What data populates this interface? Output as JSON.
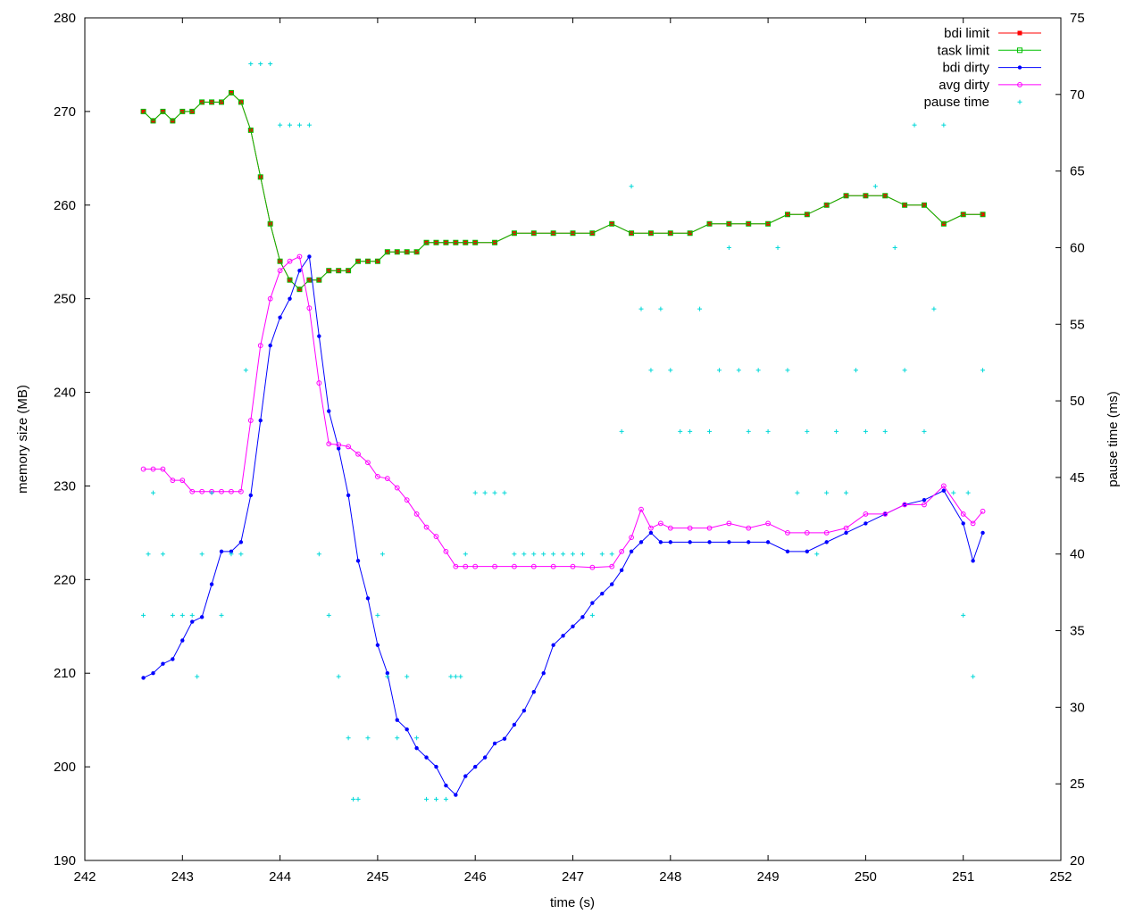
{
  "chart_data": {
    "type": "line",
    "x_label": "time (s)",
    "y_label": "memory size (MB)",
    "y2_label": "pause time (ms)",
    "xlim": [
      242,
      252
    ],
    "ylim": [
      190,
      280
    ],
    "y2lim": [
      20,
      75
    ],
    "x_ticks": [
      242,
      243,
      244,
      245,
      246,
      247,
      248,
      249,
      250,
      251,
      252
    ],
    "y_ticks": [
      190,
      200,
      210,
      220,
      230,
      240,
      250,
      260,
      270,
      280
    ],
    "y2_ticks": [
      20,
      25,
      30,
      35,
      40,
      45,
      50,
      55,
      60,
      65,
      70,
      75
    ],
    "legend_position": "top-right",
    "series": [
      {
        "name": "bdi limit",
        "axis": "y1",
        "color": "#ff0000",
        "marker": "square",
        "x": [
          242.6,
          242.7,
          242.8,
          242.9,
          243.0,
          243.1,
          243.2,
          243.3,
          243.4,
          243.5,
          243.6,
          243.7,
          243.8,
          243.9,
          244.0,
          244.1,
          244.2,
          244.3,
          244.4,
          244.5,
          244.6,
          244.7,
          244.8,
          244.9,
          245.0,
          245.1,
          245.2,
          245.3,
          245.4,
          245.5,
          245.6,
          245.7,
          245.8,
          245.9,
          246.0,
          246.2,
          246.4,
          246.6,
          246.8,
          247.0,
          247.2,
          247.4,
          247.6,
          247.8,
          248.0,
          248.2,
          248.4,
          248.6,
          248.8,
          249.0,
          249.2,
          249.4,
          249.6,
          249.8,
          250.0,
          250.2,
          250.4,
          250.6,
          250.8,
          251.0,
          251.2
        ],
        "values": [
          270,
          269,
          270,
          269,
          270,
          270,
          271,
          271,
          271,
          272,
          271,
          268,
          263,
          258,
          254,
          252,
          251,
          252,
          252,
          253,
          253,
          253,
          254,
          254,
          254,
          255,
          255,
          255,
          255,
          256,
          256,
          256,
          256,
          256,
          256,
          256,
          257,
          257,
          257,
          257,
          257,
          258,
          257,
          257,
          257,
          257,
          258,
          258,
          258,
          258,
          259,
          259,
          260,
          261,
          261,
          261,
          260,
          260,
          258,
          259,
          259
        ]
      },
      {
        "name": "task limit",
        "axis": "y1",
        "color": "#00c000",
        "marker": "open-square",
        "x": [
          242.6,
          242.7,
          242.8,
          242.9,
          243.0,
          243.1,
          243.2,
          243.3,
          243.4,
          243.5,
          243.6,
          243.7,
          243.8,
          243.9,
          244.0,
          244.1,
          244.2,
          244.3,
          244.4,
          244.5,
          244.6,
          244.7,
          244.8,
          244.9,
          245.0,
          245.1,
          245.2,
          245.3,
          245.4,
          245.5,
          245.6,
          245.7,
          245.8,
          245.9,
          246.0,
          246.2,
          246.4,
          246.6,
          246.8,
          247.0,
          247.2,
          247.4,
          247.6,
          247.8,
          248.0,
          248.2,
          248.4,
          248.6,
          248.8,
          249.0,
          249.2,
          249.4,
          249.6,
          249.8,
          250.0,
          250.2,
          250.4,
          250.6,
          250.8,
          251.0,
          251.2
        ],
        "values": [
          270,
          269,
          270,
          269,
          270,
          270,
          271,
          271,
          271,
          272,
          271,
          268,
          263,
          258,
          254,
          252,
          251,
          252,
          252,
          253,
          253,
          253,
          254,
          254,
          254,
          255,
          255,
          255,
          255,
          256,
          256,
          256,
          256,
          256,
          256,
          256,
          257,
          257,
          257,
          257,
          257,
          258,
          257,
          257,
          257,
          257,
          258,
          258,
          258,
          258,
          259,
          259,
          260,
          261,
          261,
          261,
          260,
          260,
          258,
          259,
          259
        ]
      },
      {
        "name": "bdi dirty",
        "axis": "y1",
        "color": "#0000ff",
        "marker": "dot",
        "x": [
          242.6,
          242.7,
          242.8,
          242.9,
          243.0,
          243.1,
          243.2,
          243.3,
          243.4,
          243.5,
          243.6,
          243.7,
          243.8,
          243.9,
          244.0,
          244.1,
          244.2,
          244.3,
          244.4,
          244.5,
          244.6,
          244.7,
          244.8,
          244.9,
          245.0,
          245.1,
          245.2,
          245.3,
          245.4,
          245.5,
          245.6,
          245.7,
          245.8,
          245.9,
          246.0,
          246.1,
          246.2,
          246.3,
          246.4,
          246.5,
          246.6,
          246.7,
          246.8,
          246.9,
          247.0,
          247.1,
          247.2,
          247.3,
          247.4,
          247.5,
          247.6,
          247.7,
          247.8,
          247.9,
          248.0,
          248.2,
          248.4,
          248.6,
          248.8,
          249.0,
          249.2,
          249.4,
          249.6,
          249.8,
          250.0,
          250.2,
          250.4,
          250.6,
          250.8,
          251.0,
          251.1,
          251.2
        ],
        "values": [
          209.5,
          210,
          211,
          211.5,
          213.5,
          215.5,
          216,
          219.5,
          223,
          223,
          224,
          229,
          237,
          245,
          248,
          250,
          253,
          254.5,
          246,
          238,
          234,
          229,
          222,
          218,
          213,
          210,
          205,
          204,
          202,
          201,
          200,
          198,
          197,
          199,
          200,
          201,
          202.5,
          203,
          204.5,
          206,
          208,
          210,
          213,
          214,
          215,
          216,
          217.5,
          218.5,
          219.5,
          221,
          223,
          224,
          225,
          224,
          224,
          224,
          224,
          224,
          224,
          224,
          223,
          223,
          224,
          225,
          226,
          227,
          228,
          228.5,
          229.5,
          226,
          222,
          225
        ]
      },
      {
        "name": "avg dirty",
        "axis": "y1",
        "color": "#ff00ff",
        "marker": "open-circle",
        "x": [
          242.6,
          242.7,
          242.8,
          242.9,
          243.0,
          243.1,
          243.2,
          243.3,
          243.4,
          243.5,
          243.6,
          243.7,
          243.8,
          243.9,
          244.0,
          244.1,
          244.2,
          244.3,
          244.4,
          244.5,
          244.6,
          244.7,
          244.8,
          244.9,
          245.0,
          245.1,
          245.2,
          245.3,
          245.4,
          245.5,
          245.6,
          245.7,
          245.8,
          245.9,
          246.0,
          246.2,
          246.4,
          246.6,
          246.8,
          247.0,
          247.2,
          247.4,
          247.5,
          247.6,
          247.7,
          247.8,
          247.9,
          248.0,
          248.2,
          248.4,
          248.6,
          248.8,
          249.0,
          249.2,
          249.4,
          249.6,
          249.8,
          250.0,
          250.2,
          250.4,
          250.6,
          250.8,
          251.0,
          251.1,
          251.2
        ],
        "values": [
          231.8,
          231.8,
          231.8,
          230.6,
          230.6,
          229.4,
          229.4,
          229.4,
          229.4,
          229.4,
          229.4,
          237,
          245,
          250,
          253,
          254,
          254.5,
          249,
          241,
          234.5,
          234.4,
          234.2,
          233.4,
          232.5,
          231,
          230.8,
          229.8,
          228.5,
          227,
          225.6,
          224.6,
          223,
          221.4,
          221.4,
          221.4,
          221.4,
          221.4,
          221.4,
          221.4,
          221.4,
          221.3,
          221.4,
          223,
          224.5,
          227.5,
          225.5,
          226,
          225.5,
          225.5,
          225.5,
          226,
          225.5,
          226,
          225,
          225,
          225,
          225.5,
          227,
          227,
          228,
          228,
          230,
          227,
          226,
          227.3
        ]
      },
      {
        "name": "pause time",
        "axis": "y2",
        "color": "#00d8d8",
        "marker": "plus",
        "x": [
          242.6,
          242.65,
          242.7,
          242.8,
          242.9,
          243.0,
          243.1,
          243.15,
          243.2,
          243.3,
          243.4,
          243.5,
          243.6,
          243.65,
          243.7,
          243.8,
          243.9,
          244.0,
          244.1,
          244.2,
          244.3,
          244.4,
          244.5,
          244.6,
          244.7,
          244.75,
          244.8,
          244.9,
          245.0,
          245.05,
          245.1,
          245.2,
          245.3,
          245.4,
          245.5,
          245.6,
          245.7,
          245.75,
          245.8,
          245.85,
          245.9,
          246.0,
          246.1,
          246.2,
          246.3,
          246.4,
          246.5,
          246.6,
          246.7,
          246.8,
          246.9,
          247.0,
          247.1,
          247.2,
          247.3,
          247.4,
          247.5,
          247.6,
          247.7,
          247.8,
          247.9,
          248.0,
          248.1,
          248.2,
          248.3,
          248.4,
          248.5,
          248.6,
          248.7,
          248.8,
          248.9,
          249.0,
          249.1,
          249.2,
          249.3,
          249.4,
          249.5,
          249.6,
          249.7,
          249.8,
          249.9,
          250.0,
          250.1,
          250.2,
          250.3,
          250.4,
          250.5,
          250.6,
          250.7,
          250.8,
          250.9,
          251.0,
          251.05,
          251.1,
          251.2
        ],
        "values": [
          36,
          40,
          44,
          40,
          36,
          36,
          36,
          32,
          40,
          44,
          36,
          40,
          40,
          52,
          72,
          72,
          72,
          68,
          68,
          68,
          68,
          40,
          36,
          32,
          28,
          24,
          24,
          28,
          36,
          40,
          32,
          28,
          32,
          28,
          24,
          24,
          24,
          32,
          32,
          32,
          40,
          44,
          44,
          44,
          44,
          40,
          40,
          40,
          40,
          40,
          40,
          40,
          40,
          36,
          40,
          40,
          48,
          64,
          56,
          52,
          56,
          52,
          48,
          48,
          56,
          48,
          52,
          60,
          52,
          48,
          52,
          48,
          60,
          52,
          44,
          48,
          40,
          44,
          48,
          44,
          52,
          48,
          64,
          48,
          60,
          52,
          68,
          48,
          56,
          68,
          44,
          36,
          44,
          32,
          52
        ]
      }
    ]
  }
}
